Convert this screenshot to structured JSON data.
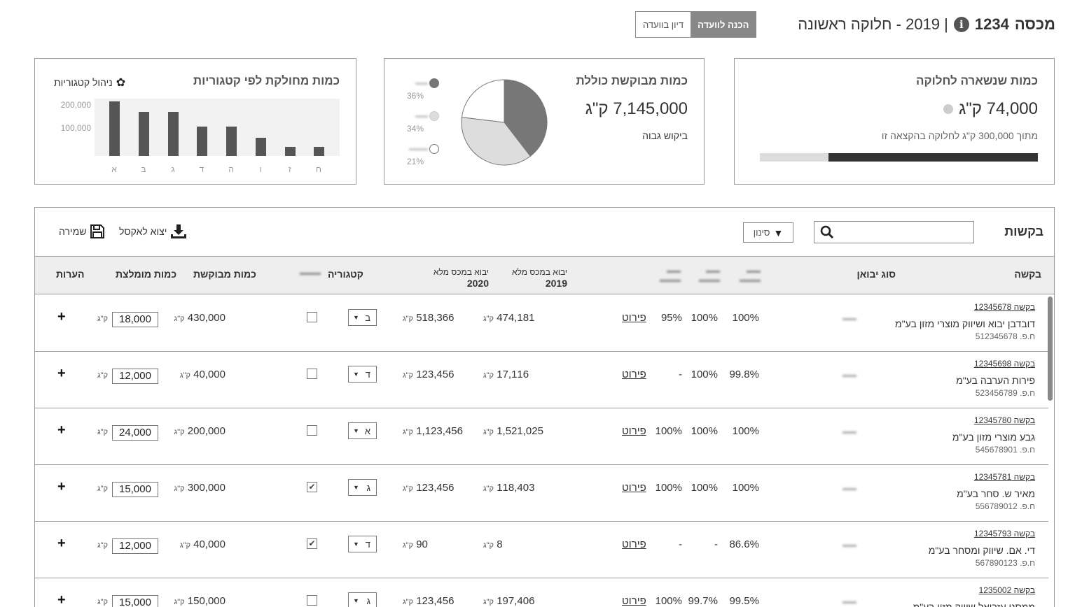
{
  "header": {
    "customs_label": "מכסה",
    "customs_number": "1234",
    "year_title": "| 2019 - חלוקה ראשונה",
    "stage_active": "הכנה לוועדה",
    "stage_inactive": "דיון בוועדה"
  },
  "remaining_card": {
    "title": "כמות שנשארה לחלוקה",
    "value": "74,000 ק\"ג",
    "subtitle": "מתוך 300,000 ק\"ג לחלוקה בהקצאה זו",
    "allocated_fraction": 0.753
  },
  "total_card": {
    "title": "כמות מבוקשת כוללת",
    "value": "7,145,000 ק\"ג",
    "demand": "ביקוש גבוה",
    "legend": [
      {
        "pct": "36%",
        "color": "#777777",
        "value": 36
      },
      {
        "pct": "34%",
        "color": "#dddddd",
        "value": 34
      },
      {
        "pct": "21%",
        "color": "#ffffff",
        "value": 21
      }
    ]
  },
  "category_card": {
    "title": "כמות מחולקת לפי קטגוריות",
    "manage": "ניהול קטגוריות"
  },
  "chart_data": {
    "type": "bar",
    "title": "כמות מחולקת לפי קטגוריות",
    "categories": [
      "א",
      "ב",
      "ג",
      "ד",
      "ה",
      "ו",
      "ז",
      "ח"
    ],
    "values": [
      228000,
      185000,
      185000,
      123000,
      123000,
      77000,
      37000,
      37000
    ],
    "y_ticks": [
      "200,000",
      "100,000"
    ],
    "ylim": [
      0,
      240000
    ]
  },
  "requests": {
    "title": "בקשות",
    "filter": "סינון",
    "export": "יצוא לאקסל",
    "save": "שמירה",
    "columns": {
      "request": "בקשה",
      "import_type": "סוג יבואן",
      "import_2019_line1": "יבוא במכס מלא",
      "import_2019_line2": "2019",
      "import_2020_line1": "יבוא במכס מלא",
      "import_2020_line2": "2020",
      "category": "קטגוריה",
      "requested": "כמות מבוקשת",
      "recommended": "כמות מומלצת",
      "notes": "הערות"
    },
    "details_label": "פירוט",
    "unit": "ק\"ג",
    "rows": [
      {
        "link": "בקשה 12345678",
        "name": "דובדבן יבוא ושיווק מוצרי מזון בע\"מ",
        "id": "ח.פ. 512345678",
        "p1": "100%",
        "p2": "100%",
        "p3": "95%",
        "imp2019": "474,181",
        "imp2020": "518,366",
        "cat": "ב",
        "checked": false,
        "requested": "430,000",
        "recommended": "18,000"
      },
      {
        "link": "בקשה 12345698",
        "name": "פירות הערבה בע\"מ",
        "id": "ח.פ. 523456789",
        "p1": "99.8%",
        "p2": "100%",
        "p3": "-",
        "imp2019": "17,116",
        "imp2020": "123,456",
        "cat": "ד",
        "checked": false,
        "requested": "40,000",
        "recommended": "12,000"
      },
      {
        "link": "בקשה 12345780",
        "name": "גבע מוצרי מזון בע\"מ",
        "id": "ח.פ. 545678901",
        "p1": "100%",
        "p2": "100%",
        "p3": "100%",
        "imp2019": "1,521,025",
        "imp2020": "1,123,456",
        "cat": "א",
        "checked": false,
        "requested": "200,000",
        "recommended": "24,000"
      },
      {
        "link": "בקשה 12345781",
        "name": "מאיר ש. סחר בע\"מ",
        "id": "ח.פ. 556789012",
        "p1": "100%",
        "p2": "100%",
        "p3": "100%",
        "imp2019": "118,403",
        "imp2020": "123,456",
        "cat": "ג",
        "checked": true,
        "requested": "300,000",
        "recommended": "15,000"
      },
      {
        "link": "בקשה 12345793",
        "name": "די. אם. שיווק ומסחר בע\"מ",
        "id": "ח.פ. 567890123",
        "p1": "86.6%",
        "p2": "-",
        "p3": "-",
        "imp2019": "8",
        "imp2020": "90",
        "cat": "ד",
        "checked": true,
        "requested": "40,000",
        "recommended": "12,000"
      },
      {
        "link": "בקשה 1235002",
        "name": "ממסני עזריאל שיווק מזון בע\"מ",
        "id": "",
        "p1": "99.5%",
        "p2": "99.7%",
        "p3": "100%",
        "imp2019": "197,406",
        "imp2020": "123,456",
        "cat": "ג",
        "checked": false,
        "requested": "150,000",
        "recommended": "15,000"
      }
    ]
  }
}
